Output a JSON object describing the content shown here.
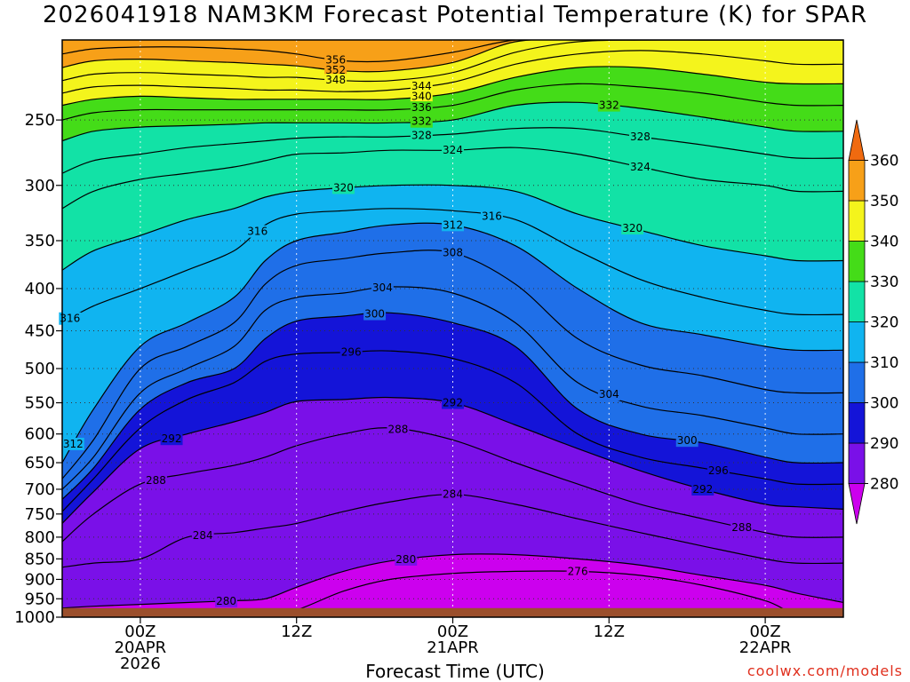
{
  "title": "2026041918 NAM3KM Forecast Potential Temperature (K) for SPAR",
  "credit": "coolwx.com/models",
  "chart_data": {
    "type": "heatmap",
    "title": "2026041918 NAM3KM Forecast Potential Temperature (K) for SPAR",
    "xlabel": "Forecast Time (UTC)",
    "ylabel": "",
    "y_scale": "log",
    "y_axis_inverted": true,
    "ylim": [
      1000,
      200
    ],
    "y_ticks": [
      1000,
      950,
      900,
      850,
      800,
      750,
      700,
      650,
      600,
      550,
      500,
      450,
      400,
      350,
      300,
      250
    ],
    "x_range_hours": [
      -5,
      45
    ],
    "x_ticks": [
      {
        "hour": 0,
        "lines": [
          "00Z",
          "20APR",
          "2026"
        ]
      },
      {
        "hour": 10,
        "lines": [
          "12Z"
        ]
      },
      {
        "hour": 20,
        "lines": [
          "00Z",
          "21APR"
        ]
      },
      {
        "hour": 30,
        "lines": [
          "12Z"
        ]
      },
      {
        "hour": 40,
        "lines": [
          "00Z",
          "22APR"
        ]
      }
    ],
    "grid": true,
    "colorbar": {
      "position": "right",
      "levels": [
        280,
        290,
        300,
        310,
        320,
        330,
        340,
        350,
        360
      ],
      "colors": [
        "#cc00ee",
        "#7a10e8",
        "#1414d8",
        "#1f6fe8",
        "#10b4f0",
        "#12e2a6",
        "#44dc18",
        "#f4f41c",
        "#f7a018",
        "#f06a10"
      ]
    },
    "ground_color": "#9b4f2c",
    "contours": {
      "interval_K": 4,
      "x_hours": [
        -5,
        -3,
        0,
        3,
        6,
        8,
        10,
        13,
        16,
        20,
        24,
        28,
        32,
        36,
        40,
        42,
        45
      ],
      "series": [
        {
          "theta": 276,
          "pressure_hPa": [
            990,
            990,
            990,
            990,
            990,
            990,
            980,
            930,
            900,
            885,
            880,
            880,
            890,
            915,
            955,
            990,
            990
          ]
        },
        {
          "theta": 280,
          "pressure_hPa": [
            975,
            970,
            965,
            960,
            955,
            950,
            920,
            880,
            855,
            840,
            840,
            850,
            865,
            890,
            915,
            935,
            960
          ]
        },
        {
          "theta": 284,
          "pressure_hPa": [
            870,
            860,
            850,
            800,
            790,
            780,
            770,
            745,
            725,
            710,
            730,
            760,
            790,
            820,
            850,
            860,
            860
          ]
        },
        {
          "theta": 288,
          "pressure_hPa": [
            810,
            750,
            690,
            670,
            655,
            640,
            620,
            600,
            590,
            610,
            650,
            690,
            730,
            760,
            790,
            800,
            800
          ]
        },
        {
          "theta": 292,
          "pressure_hPa": [
            770,
            705,
            625,
            600,
            580,
            565,
            548,
            545,
            542,
            550,
            585,
            625,
            665,
            700,
            730,
            735,
            740
          ]
        },
        {
          "theta": 296,
          "pressure_hPa": [
            745,
            680,
            590,
            545,
            520,
            490,
            480,
            478,
            476,
            486,
            520,
            600,
            640,
            660,
            680,
            690,
            690
          ]
        },
        {
          "theta": 300,
          "pressure_hPa": [
            720,
            660,
            560,
            520,
            500,
            460,
            438,
            432,
            428,
            440,
            470,
            560,
            600,
            615,
            640,
            650,
            650
          ]
        },
        {
          "theta": 304,
          "pressure_hPa": [
            700,
            640,
            535,
            500,
            470,
            425,
            410,
            405,
            398,
            405,
            440,
            520,
            555,
            570,
            590,
            600,
            600
          ]
        },
        {
          "theta": 308,
          "pressure_hPa": [
            680,
            610,
            500,
            470,
            440,
            395,
            375,
            368,
            362,
            362,
            395,
            460,
            495,
            510,
            530,
            535,
            535
          ]
        },
        {
          "theta": 312,
          "pressure_hPa": [
            650,
            560,
            470,
            440,
            410,
            370,
            350,
            342,
            335,
            335,
            355,
            400,
            440,
            455,
            470,
            475,
            475
          ]
        },
        {
          "theta": 316,
          "pressure_hPa": [
            440,
            420,
            400,
            380,
            360,
            335,
            325,
            322,
            320,
            322,
            330,
            360,
            390,
            410,
            425,
            430,
            430
          ]
        },
        {
          "theta": 320,
          "pressure_hPa": [
            380,
            360,
            345,
            330,
            320,
            310,
            305,
            302,
            300,
            300,
            305,
            325,
            340,
            355,
            365,
            370,
            370
          ]
        },
        {
          "theta": 324,
          "pressure_hPa": [
            320,
            305,
            295,
            290,
            285,
            280,
            275,
            274,
            272,
            272,
            270,
            275,
            285,
            295,
            300,
            305,
            305
          ]
        },
        {
          "theta": 328,
          "pressure_hPa": [
            290,
            280,
            275,
            270,
            267,
            265,
            263,
            262,
            262,
            260,
            256,
            256,
            262,
            268,
            275,
            278,
            278
          ]
        },
        {
          "theta": 332,
          "pressure_hPa": [
            265,
            258,
            255,
            254,
            253,
            252,
            252,
            252,
            252,
            250,
            240,
            238,
            242,
            248,
            255,
            258,
            258
          ]
        },
        {
          "theta": 336,
          "pressure_hPa": [
            250,
            245,
            243,
            243,
            243,
            243,
            243,
            243,
            243,
            240,
            230,
            226,
            228,
            232,
            238,
            240,
            240
          ]
        },
        {
          "theta": 340,
          "pressure_hPa": [
            240,
            236,
            234,
            235,
            236,
            236,
            236,
            236,
            236,
            232,
            222,
            216,
            216,
            220,
            225,
            226,
            226
          ]
        },
        {
          "theta": 344,
          "pressure_hPa": [
            232,
            228,
            227,
            228,
            229,
            230,
            230,
            231,
            230,
            225,
            214,
            208,
            206,
            208,
            212,
            214,
            214
          ]
        },
        {
          "theta": 348,
          "pressure_hPa": [
            224,
            220,
            219,
            220,
            221,
            222,
            222,
            224,
            224,
            219,
            207,
            201,
            200,
            200,
            200,
            200,
            200
          ]
        },
        {
          "theta": 352,
          "pressure_hPa": [
            216,
            212,
            211,
            212,
            213,
            214,
            215,
            218,
            218,
            213,
            201,
            200,
            200,
            200,
            200,
            200,
            200
          ]
        },
        {
          "theta": 356,
          "pressure_hPa": [
            208,
            205,
            204,
            204,
            205,
            206,
            208,
            212,
            212,
            207,
            200,
            200,
            200,
            200,
            200,
            200,
            200
          ]
        }
      ]
    },
    "contour_labels": [
      {
        "theta": 356,
        "hour": 12.5
      },
      {
        "theta": 352,
        "hour": 12.5
      },
      {
        "theta": 348,
        "hour": 12.5
      },
      {
        "theta": 344,
        "hour": 18
      },
      {
        "theta": 340,
        "hour": 18
      },
      {
        "theta": 336,
        "hour": 18
      },
      {
        "theta": 332,
        "hour": 18
      },
      {
        "theta": 328,
        "hour": 18
      },
      {
        "theta": 324,
        "hour": 20
      },
      {
        "theta": 320,
        "hour": 13
      },
      {
        "theta": 316,
        "hour": 7.5
      },
      {
        "theta": 312,
        "hour": 20
      },
      {
        "theta": 316,
        "hour": 22.5
      },
      {
        "theta": 308,
        "hour": 20
      },
      {
        "theta": 304,
        "hour": 15.5
      },
      {
        "theta": 300,
        "hour": 15
      },
      {
        "theta": 296,
        "hour": 13.5
      },
      {
        "theta": 292,
        "hour": 20
      },
      {
        "theta": 292,
        "hour": 2
      },
      {
        "theta": 288,
        "hour": 1
      },
      {
        "theta": 288,
        "hour": 16.5
      },
      {
        "theta": 284,
        "hour": 20
      },
      {
        "theta": 284,
        "hour": 4
      },
      {
        "theta": 280,
        "hour": 17
      },
      {
        "theta": 280,
        "hour": 5.5
      },
      {
        "theta": 276,
        "hour": 28
      },
      {
        "theta": 332,
        "hour": 30
      },
      {
        "theta": 328,
        "hour": 32
      },
      {
        "theta": 324,
        "hour": 32
      },
      {
        "theta": 320,
        "hour": 31.5
      },
      {
        "theta": 316,
        "hour": -4.5
      },
      {
        "theta": 312,
        "hour": -4.3
      },
      {
        "theta": 304,
        "hour": 30
      },
      {
        "theta": 300,
        "hour": 35
      },
      {
        "theta": 296,
        "hour": 37
      },
      {
        "theta": 292,
        "hour": 36
      },
      {
        "theta": 288,
        "hour": 38.5
      }
    ]
  }
}
